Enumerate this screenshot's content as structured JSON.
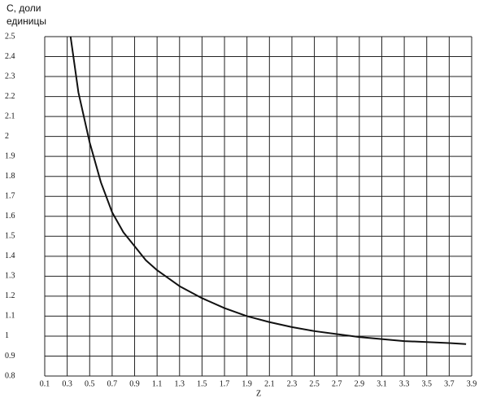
{
  "chart_data": {
    "type": "line",
    "title_lines": [
      "С, доли",
      "единицы"
    ],
    "x_label": "Z",
    "x": [
      0.33,
      0.4,
      0.5,
      0.6,
      0.7,
      0.8,
      0.9,
      1.0,
      1.1,
      1.3,
      1.5,
      1.7,
      1.9,
      2.1,
      2.3,
      2.5,
      2.7,
      2.9,
      3.1,
      3.3,
      3.5,
      3.7,
      3.85
    ],
    "series": [
      {
        "color": "#111111",
        "values": [
          2.5,
          2.22,
          1.97,
          1.77,
          1.62,
          1.52,
          1.45,
          1.38,
          1.33,
          1.25,
          1.19,
          1.14,
          1.1,
          1.07,
          1.045,
          1.025,
          1.01,
          0.995,
          0.985,
          0.975,
          0.97,
          0.965,
          0.96
        ]
      }
    ],
    "xlim": [
      0.1,
      3.9
    ],
    "xticks": [
      0.1,
      0.3,
      0.5,
      0.7,
      0.9,
      1.1,
      1.3,
      1.5,
      1.7,
      1.9,
      2.1,
      2.3,
      2.5,
      2.7,
      2.9,
      3.1,
      3.3,
      3.5,
      3.7,
      3.9
    ],
    "ylim": [
      0.8,
      2.5
    ],
    "yticks": [
      0.8,
      0.9,
      1,
      1.1,
      1.2,
      1.3,
      1.4,
      1.5,
      1.6,
      1.7,
      1.8,
      1.9,
      2,
      2.1,
      2.2,
      2.3,
      2.4,
      2.5
    ],
    "grid": true
  }
}
